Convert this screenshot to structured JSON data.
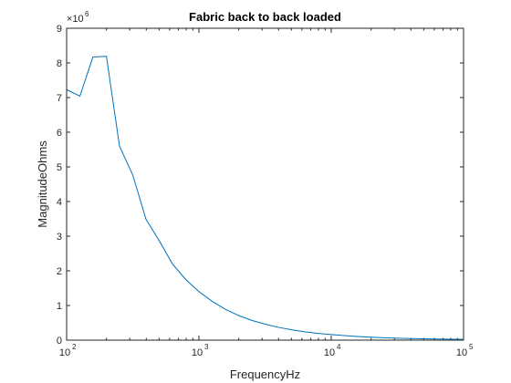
{
  "chart_data": {
    "type": "line",
    "title": "Fabric back to back loaded",
    "xlabel": "FrequencyHz",
    "ylabel": "MagnitudeOhms",
    "x_scale": "log",
    "xlim": [
      100,
      100000
    ],
    "x_ticks": [
      {
        "value": 100,
        "base": "10",
        "exp": "2"
      },
      {
        "value": 1000,
        "base": "10",
        "exp": "3"
      },
      {
        "value": 10000,
        "base": "10",
        "exp": "4"
      },
      {
        "value": 100000,
        "base": "10",
        "exp": "5"
      }
    ],
    "ylim": [
      0,
      9000000
    ],
    "y_ticks": [
      0,
      1,
      2,
      3,
      4,
      5,
      6,
      7,
      8,
      9
    ],
    "y_tick_labels": [
      "0",
      "1",
      "2",
      "3",
      "4",
      "5",
      "6",
      "7",
      "8",
      "9"
    ],
    "y_multiplier": {
      "base": "×10",
      "exp": "6"
    },
    "grid": false,
    "series": [
      {
        "color": "#0072BD",
        "x": [
          100,
          126,
          158,
          200,
          251,
          316,
          398,
          501,
          631,
          794,
          1000,
          1259,
          1585,
          1995,
          2512,
          3162,
          3981,
          5012,
          6310,
          7943,
          10000,
          12589,
          15849,
          19953,
          25119,
          31623,
          39811,
          50119,
          63096,
          79433,
          100000
        ],
        "y": [
          7230000,
          7040000,
          8170000,
          8190000,
          5600000,
          4770000,
          3490000,
          2870000,
          2200000,
          1750000,
          1400000,
          1120000,
          890000,
          710000,
          570000,
          460000,
          370000,
          300000,
          240000,
          195000,
          160000,
          130000,
          105000,
          85000,
          70000,
          57000,
          47000,
          39000,
          32000,
          27000,
          22000
        ]
      }
    ]
  }
}
